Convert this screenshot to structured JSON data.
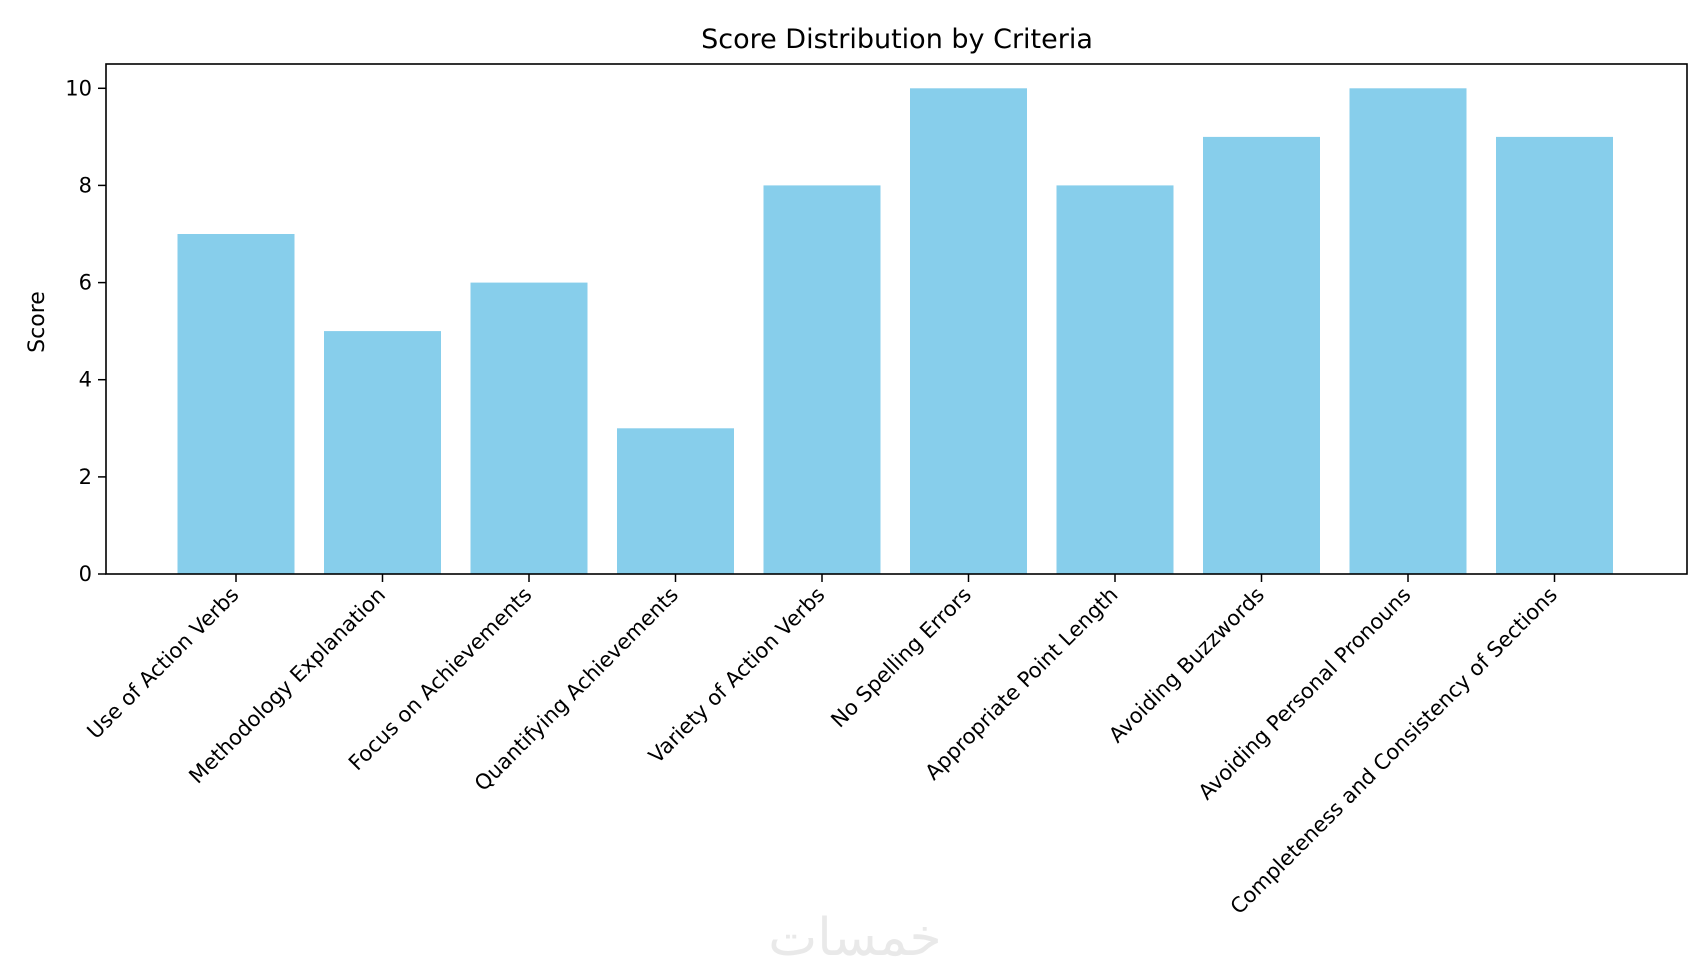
{
  "chart_data": {
    "type": "bar",
    "title": "Score Distribution by Criteria",
    "xlabel": "",
    "ylabel": "Score",
    "categories": [
      "Use of Action Verbs",
      "Methodology Explanation",
      "Focus on Achievements",
      "Quantifying Achievements",
      "Variety of Action Verbs",
      "No Spelling Errors",
      "Appropriate Point Length",
      "Avoiding Buzzwords",
      "Avoiding Personal Pronouns",
      "Completeness and Consistency of Sections"
    ],
    "values": [
      7,
      5,
      6,
      3,
      8,
      10,
      8,
      9,
      10,
      9
    ],
    "ylim": [
      0,
      10.5
    ],
    "yticks": [
      0,
      2,
      4,
      6,
      8,
      10
    ],
    "grid": false,
    "legend": "none",
    "bar_color": "#87CEEB",
    "x_tick_rotation": "45°"
  },
  "watermark": {
    "text": "خمسات"
  }
}
